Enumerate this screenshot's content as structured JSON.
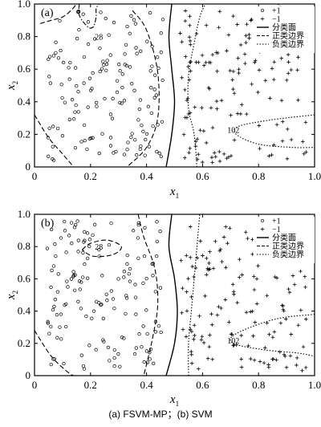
{
  "caption": "(a) FSVM-MP；(b) SVM",
  "chart_data": [
    {
      "type": "scatter",
      "panel_label": "(a)",
      "xlabel": "x1",
      "ylabel": "x2",
      "xlim": [
        0,
        1
      ],
      "ylim": [
        0,
        1
      ],
      "xticks": [
        "0",
        "0.2",
        "0.4",
        "0.6",
        "0.8",
        "1.0"
      ],
      "yticks": [
        "0",
        "0.2",
        "0.4",
        "0.6",
        "0.8",
        "1.0"
      ],
      "grid": false,
      "legend_position": "top-right",
      "legend": [
        "+1",
        "−1",
        "分类面",
        "正类边界",
        "负类边界"
      ],
      "annotations": [
        {
          "text": "28",
          "x": 0.23,
          "y": 0.78
        },
        {
          "text": "102",
          "x": 0.71,
          "y": 0.21
        }
      ],
      "series": [
        {
          "name": "+1",
          "marker": "circle",
          "count": 150,
          "region": {
            "x": [
              0.04,
              0.46
            ],
            "y": [
              0.04,
              0.96
            ]
          },
          "seed": 11
        },
        {
          "name": "−1",
          "marker": "plus",
          "count": 150,
          "region": {
            "x": [
              0.52,
              0.97
            ],
            "y": [
              0.02,
              0.96
            ]
          },
          "seed": 23
        }
      ],
      "curves": [
        {
          "name": "分类面",
          "style": "solid",
          "points": [
            [
              0.47,
              0.0
            ],
            [
              0.49,
              0.2
            ],
            [
              0.5,
              0.4
            ],
            [
              0.49,
              0.6
            ],
            [
              0.48,
              0.8
            ],
            [
              0.49,
              1.0
            ]
          ]
        },
        {
          "name": "正类边界",
          "style": "dashed",
          "points": [
            [
              0.02,
              0.88
            ],
            [
              0.06,
              0.9
            ],
            [
              0.1,
              0.92
            ],
            [
              0.13,
              0.96
            ],
            [
              0.15,
              1.0
            ]
          ]
        },
        {
          "name": "loop-28",
          "style": "dash-dot",
          "points": [
            [
              0.16,
              1.0
            ],
            [
              0.16,
              0.93
            ],
            [
              0.19,
              0.86
            ],
            [
              0.21,
              0.86
            ],
            [
              0.22,
              0.92
            ],
            [
              0.22,
              0.97
            ],
            [
              0.23,
              1.0
            ]
          ]
        },
        {
          "name": "正类边界",
          "style": "dashed",
          "points": [
            [
              0.0,
              0.32
            ],
            [
              0.05,
              0.18
            ],
            [
              0.1,
              0.08
            ],
            [
              0.14,
              0.0
            ]
          ]
        },
        {
          "name": "正类边界",
          "style": "dashed",
          "points": [
            [
              0.35,
              0.96
            ],
            [
              0.4,
              0.84
            ],
            [
              0.44,
              0.58
            ],
            [
              0.44,
              0.3
            ],
            [
              0.4,
              0.12
            ],
            [
              0.33,
              0.0
            ]
          ]
        },
        {
          "name": "负类边界",
          "style": "dotted",
          "points": [
            [
              0.58,
              0.0
            ],
            [
              0.57,
              0.2
            ],
            [
              0.55,
              0.36
            ],
            [
              0.55,
              0.56
            ],
            [
              0.57,
              0.76
            ],
            [
              0.59,
              0.92
            ],
            [
              0.61,
              1.0
            ]
          ]
        },
        {
          "name": "负类边界",
          "style": "dotted",
          "points": [
            [
              0.87,
              1.0
            ],
            [
              0.92,
              0.9
            ],
            [
              0.96,
              0.82
            ],
            [
              1.0,
              0.78
            ]
          ]
        },
        {
          "name": "负类边界",
          "style": "dotted",
          "points": [
            [
              1.0,
              0.32
            ],
            [
              0.85,
              0.29
            ],
            [
              0.73,
              0.25
            ],
            [
              0.72,
              0.2
            ],
            [
              0.8,
              0.14
            ],
            [
              0.92,
              0.12
            ],
            [
              1.0,
              0.12
            ]
          ]
        }
      ]
    },
    {
      "type": "scatter",
      "panel_label": "(b)",
      "xlabel": "x1",
      "ylabel": "x2",
      "xlim": [
        0,
        1
      ],
      "ylim": [
        0,
        1
      ],
      "xticks": [
        "0",
        "0.2",
        "0.4",
        "0.6",
        "0.8",
        "1.0"
      ],
      "yticks": [
        "0",
        "0.2",
        "0.4",
        "0.6",
        "0.8",
        "1.0"
      ],
      "grid": false,
      "legend_position": "top-right",
      "legend": [
        "+1",
        "−1",
        "分类面",
        "正类边界",
        "负类边界"
      ],
      "annotations": [
        {
          "text": "28",
          "x": 0.23,
          "y": 0.78
        },
        {
          "text": "102",
          "x": 0.71,
          "y": 0.2
        }
      ],
      "series": [
        {
          "name": "+1",
          "marker": "circle",
          "count": 150,
          "region": {
            "x": [
              0.04,
              0.46
            ],
            "y": [
              0.04,
              0.96
            ]
          },
          "seed": 37
        },
        {
          "name": "−1",
          "marker": "plus",
          "count": 150,
          "region": {
            "x": [
              0.52,
              0.97
            ],
            "y": [
              0.02,
              0.96
            ]
          },
          "seed": 53
        }
      ],
      "curves": [
        {
          "name": "分类面",
          "style": "solid",
          "points": [
            [
              0.47,
              0.0
            ],
            [
              0.5,
              0.2
            ],
            [
              0.51,
              0.4
            ],
            [
              0.5,
              0.6
            ],
            [
              0.48,
              0.8
            ],
            [
              0.49,
              1.0
            ]
          ]
        },
        {
          "name": "正类边界",
          "style": "dashed",
          "points": [
            [
              0.0,
              0.28
            ],
            [
              0.06,
              0.12
            ],
            [
              0.12,
              0.02
            ],
            [
              0.14,
              0.0
            ]
          ]
        },
        {
          "name": "正类边界",
          "style": "dashed",
          "points": [
            [
              0.37,
              1.0
            ],
            [
              0.39,
              0.86
            ],
            [
              0.43,
              0.66
            ],
            [
              0.44,
              0.44
            ],
            [
              0.42,
              0.22
            ],
            [
              0.39,
              0.0
            ]
          ]
        },
        {
          "name": "loop-28",
          "style": "dashed",
          "points": [
            [
              0.17,
              0.78
            ],
            [
              0.2,
              0.82
            ],
            [
              0.26,
              0.84
            ],
            [
              0.31,
              0.8
            ],
            [
              0.28,
              0.75
            ],
            [
              0.21,
              0.74
            ],
            [
              0.17,
              0.78
            ]
          ]
        },
        {
          "name": "负类边界",
          "style": "dotted",
          "points": [
            [
              0.55,
              0.0
            ],
            [
              0.55,
              0.2
            ],
            [
              0.56,
              0.4
            ],
            [
              0.57,
              0.6
            ],
            [
              0.58,
              0.8
            ],
            [
              0.59,
              1.0
            ]
          ]
        },
        {
          "name": "负类边界",
          "style": "dotted",
          "points": [
            [
              1.0,
              0.38
            ],
            [
              0.86,
              0.35
            ],
            [
              0.72,
              0.26
            ],
            [
              0.71,
              0.2
            ],
            [
              0.82,
              0.16
            ],
            [
              0.94,
              0.14
            ],
            [
              1.0,
              0.12
            ]
          ]
        }
      ]
    }
  ]
}
